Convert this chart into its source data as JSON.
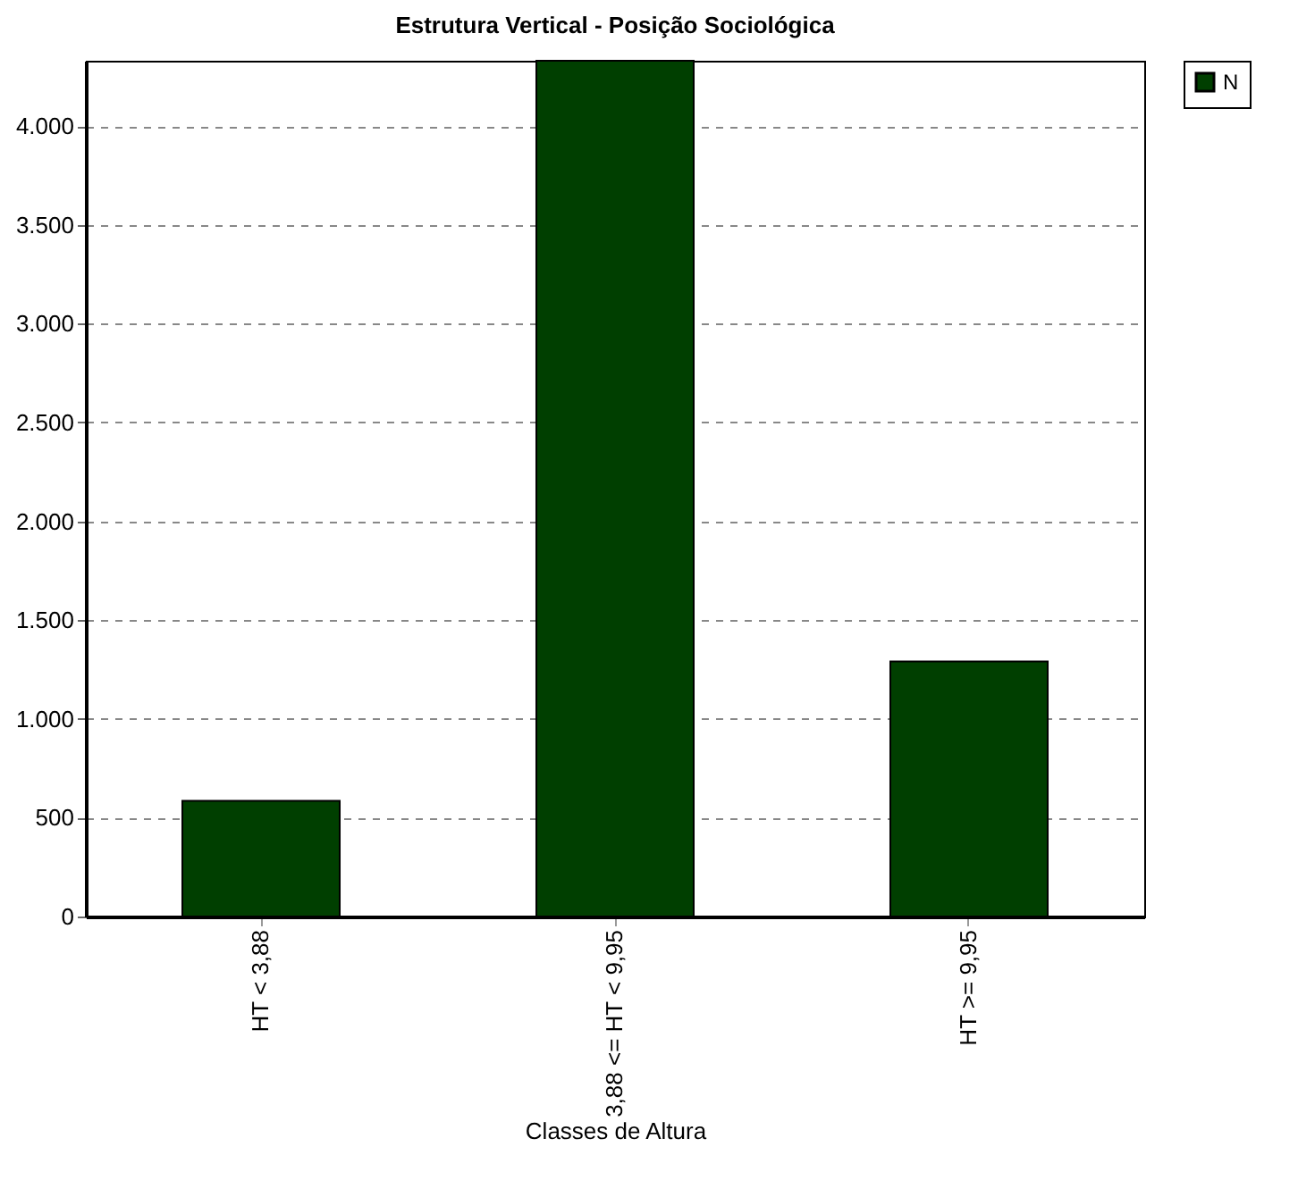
{
  "chart_data": {
    "type": "bar",
    "title": "Estrutura Vertical - Posição Sociológica",
    "xlabel": "Classes de Altura",
    "categories": [
      "HT < 3,88",
      "3,88 <= HT < 9,95",
      "HT >= 9,95"
    ],
    "series": [
      {
        "name": "N",
        "color": "#003f00",
        "values": [
          585,
          4330,
          1290
        ]
      }
    ],
    "ylim": [
      0,
      4330
    ],
    "yticks": [
      {
        "value": 0,
        "label": "0"
      },
      {
        "value": 500,
        "label": "500"
      },
      {
        "value": 1000,
        "label": "1.000"
      },
      {
        "value": 1500,
        "label": "1.500"
      },
      {
        "value": 2000,
        "label": "2.000"
      },
      {
        "value": 2500,
        "label": "2.500"
      },
      {
        "value": 3000,
        "label": "3.000"
      },
      {
        "value": 3500,
        "label": "3.500"
      },
      {
        "value": 4000,
        "label": "4.000"
      }
    ],
    "grid": "y",
    "legend": "top right"
  }
}
